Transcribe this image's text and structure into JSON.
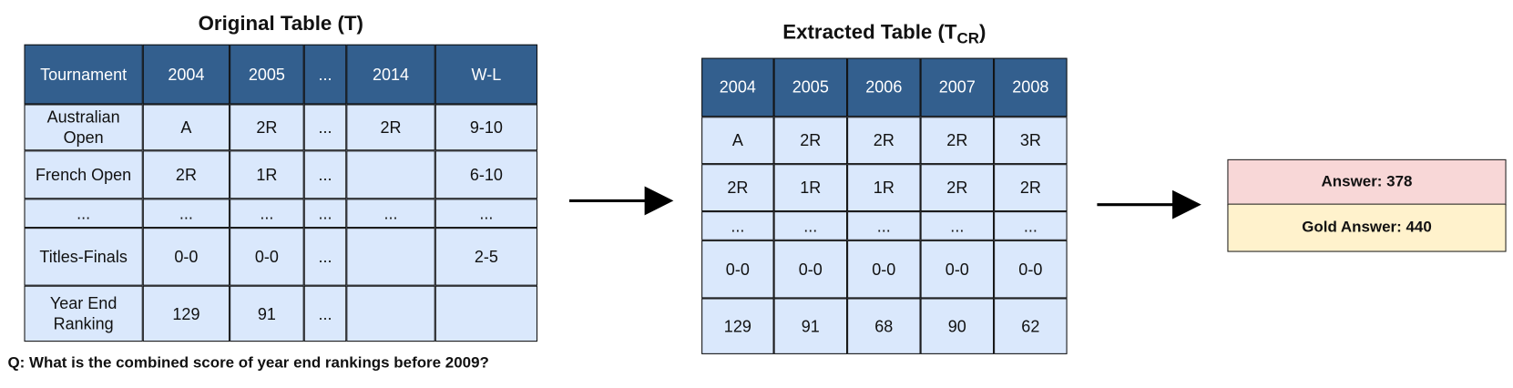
{
  "original": {
    "title": "Original Table (T)",
    "header": [
      "Tournament",
      "2004",
      "2005",
      "...",
      "2014",
      "W-L"
    ],
    "rows": [
      [
        "Australian Open",
        "A",
        "2R",
        "...",
        "2R",
        "9-10"
      ],
      [
        "French Open",
        "2R",
        "1R",
        "...",
        null,
        "6-10"
      ],
      [
        "...",
        "...",
        "...",
        "...",
        "...",
        "..."
      ],
      [
        "Titles-Finals",
        "0-0",
        "0-0",
        "...",
        null,
        "2-5"
      ],
      [
        "Year End Ranking",
        "129",
        "91",
        "...",
        null,
        null
      ]
    ]
  },
  "question": "Q: What is the combined score of year end rankings before 2009?",
  "extracted": {
    "title": {
      "text": "Extracted Table (T",
      "subscript": "CR",
      "close": ")"
    },
    "header": [
      "2004",
      "2005",
      "2006",
      "2007",
      "2008"
    ],
    "rows": [
      [
        "A",
        "2R",
        "2R",
        "2R",
        "3R"
      ],
      [
        "2R",
        "1R",
        "1R",
        "2R",
        "2R"
      ],
      [
        "...",
        "...",
        "...",
        "...",
        "..."
      ],
      [
        "0-0",
        "0-0",
        "0-0",
        "0-0",
        "0-0"
      ],
      [
        "129",
        "91",
        "68",
        "90",
        "62"
      ]
    ]
  },
  "answer": {
    "predicted": "Answer: 378",
    "gold": "Gold Answer: 440"
  }
}
